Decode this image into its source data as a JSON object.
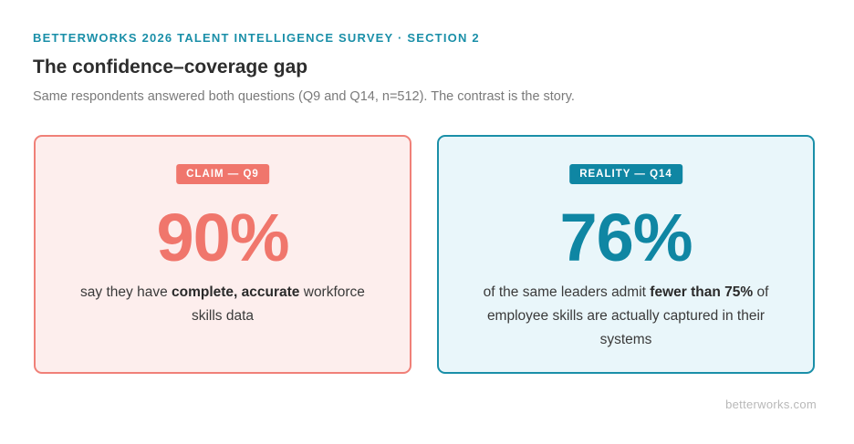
{
  "header": {
    "eyebrow": "BETTERWORKS 2026 TALENT INTELLIGENCE SURVEY · SECTION 2",
    "title": "The confidence–coverage gap",
    "subtitle": "Same respondents answered both questions (Q9 and Q14, n=512). The contrast is the story."
  },
  "claim": {
    "badge": "CLAIM — Q9",
    "stat": "90%",
    "desc_pre": "say they have ",
    "desc_bold": "complete, accurate",
    "desc_post": " workforce skills data",
    "accent_color": "#f0766c",
    "background_color": "#fdeeed"
  },
  "reality": {
    "badge": "REALITY — Q14",
    "stat": "76%",
    "desc_pre": "of the same leaders admit ",
    "desc_bold": "fewer than 75%",
    "desc_post": " of employee skills are actually captured in their systems",
    "accent_color": "#0f86a3",
    "background_color": "#e9f6fa"
  },
  "footer": {
    "brand": "betterworks.com"
  }
}
